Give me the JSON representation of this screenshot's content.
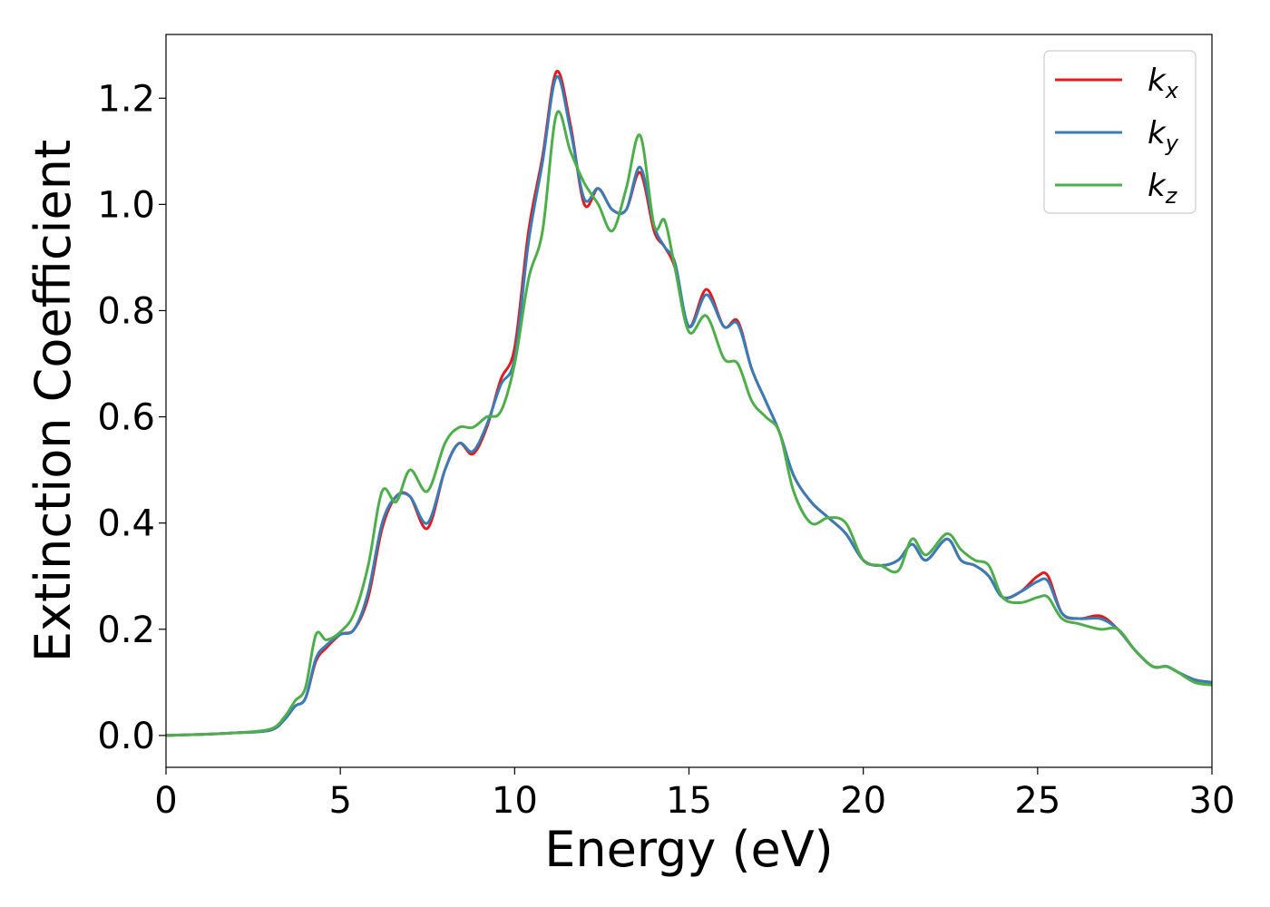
{
  "chart_data": {
    "type": "line",
    "xlabel": "Energy (eV)",
    "ylabel": "Extinction Coefficient",
    "xlim": [
      0,
      30
    ],
    "ylim": [
      -0.06,
      1.32
    ],
    "xticks": [
      0,
      5,
      10,
      15,
      20,
      25,
      30
    ],
    "xtick_labels": [
      "0",
      "5",
      "10",
      "15",
      "20",
      "25",
      "30"
    ],
    "yticks": [
      0.0,
      0.2,
      0.4,
      0.6,
      0.8,
      1.0,
      1.2
    ],
    "ytick_labels": [
      "0.0",
      "0.2",
      "0.4",
      "0.6",
      "0.8",
      "1.0",
      "1.2"
    ],
    "grid": false,
    "legend_position": "top-right",
    "x": [
      0,
      1,
      2,
      3,
      3.4,
      3.7,
      4.0,
      4.3,
      4.6,
      5.0,
      5.4,
      5.8,
      6.2,
      6.6,
      7.0,
      7.5,
      8.0,
      8.4,
      8.8,
      9.2,
      9.6,
      10.0,
      10.4,
      10.8,
      11.2,
      11.6,
      12.0,
      12.4,
      12.8,
      13.2,
      13.6,
      14.0,
      14.3,
      14.6,
      15.0,
      15.5,
      16.0,
      16.4,
      16.8,
      17.2,
      17.6,
      18.0,
      18.5,
      19.0,
      19.5,
      20.0,
      20.5,
      21.0,
      21.4,
      21.8,
      22.4,
      22.8,
      23.2,
      23.6,
      24.0,
      24.5,
      25.0,
      25.3,
      25.7,
      26.2,
      26.8,
      27.3,
      27.8,
      28.3,
      28.7,
      29.0,
      29.5,
      30.0
    ],
    "series": [
      {
        "name": "k_x",
        "label_main": "k",
        "label_sub": "x",
        "color": "#e41a1c",
        "values": [
          0.0,
          0.002,
          0.005,
          0.01,
          0.03,
          0.055,
          0.07,
          0.14,
          0.165,
          0.19,
          0.2,
          0.26,
          0.39,
          0.45,
          0.45,
          0.39,
          0.5,
          0.55,
          0.53,
          0.58,
          0.67,
          0.73,
          0.95,
          1.09,
          1.25,
          1.15,
          1.0,
          1.03,
          0.99,
          0.99,
          1.06,
          0.95,
          0.92,
          0.88,
          0.77,
          0.84,
          0.77,
          0.78,
          0.69,
          0.63,
          0.57,
          0.49,
          0.44,
          0.41,
          0.38,
          0.33,
          0.32,
          0.33,
          0.36,
          0.33,
          0.37,
          0.33,
          0.32,
          0.3,
          0.26,
          0.27,
          0.3,
          0.3,
          0.23,
          0.22,
          0.225,
          0.2,
          0.16,
          0.13,
          0.13,
          0.12,
          0.105,
          0.1
        ]
      },
      {
        "name": "k_y",
        "label_main": "k",
        "label_sub": "y",
        "color": "#377eb8",
        "values": [
          0.0,
          0.002,
          0.005,
          0.01,
          0.03,
          0.055,
          0.07,
          0.145,
          0.17,
          0.19,
          0.2,
          0.27,
          0.4,
          0.45,
          0.45,
          0.4,
          0.5,
          0.55,
          0.535,
          0.585,
          0.66,
          0.71,
          0.93,
          1.08,
          1.24,
          1.14,
          1.01,
          1.03,
          0.99,
          0.99,
          1.07,
          0.96,
          0.92,
          0.89,
          0.77,
          0.83,
          0.77,
          0.775,
          0.69,
          0.63,
          0.57,
          0.49,
          0.44,
          0.41,
          0.38,
          0.33,
          0.32,
          0.33,
          0.36,
          0.33,
          0.37,
          0.33,
          0.32,
          0.3,
          0.26,
          0.27,
          0.29,
          0.29,
          0.23,
          0.22,
          0.22,
          0.2,
          0.16,
          0.13,
          0.13,
          0.12,
          0.105,
          0.1
        ]
      },
      {
        "name": "k_z",
        "label_main": "k",
        "label_sub": "z",
        "color": "#4daf4a",
        "values": [
          0.0,
          0.002,
          0.005,
          0.012,
          0.035,
          0.065,
          0.09,
          0.19,
          0.18,
          0.195,
          0.23,
          0.32,
          0.46,
          0.44,
          0.5,
          0.46,
          0.55,
          0.58,
          0.58,
          0.6,
          0.61,
          0.7,
          0.86,
          0.95,
          1.17,
          1.1,
          1.04,
          1.0,
          0.95,
          1.03,
          1.13,
          0.96,
          0.97,
          0.88,
          0.76,
          0.79,
          0.71,
          0.7,
          0.63,
          0.6,
          0.57,
          0.46,
          0.4,
          0.41,
          0.4,
          0.33,
          0.32,
          0.31,
          0.37,
          0.34,
          0.38,
          0.35,
          0.33,
          0.32,
          0.26,
          0.25,
          0.26,
          0.26,
          0.22,
          0.21,
          0.2,
          0.2,
          0.16,
          0.13,
          0.13,
          0.12,
          0.1,
          0.095
        ]
      }
    ]
  }
}
